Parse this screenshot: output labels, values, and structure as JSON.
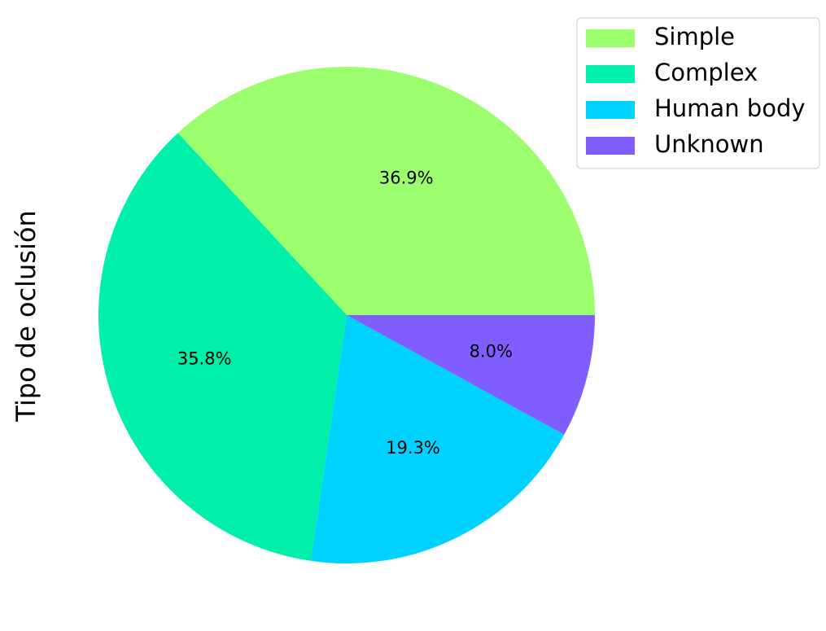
{
  "chart_data": {
    "type": "pie",
    "title": "",
    "ylabel": "Tipo de oclusión",
    "labels": [
      "Simple",
      "Complex",
      "Human body",
      "Unknown"
    ],
    "values": [
      36.9,
      35.8,
      19.3,
      8.0
    ],
    "value_labels": [
      "36.9%",
      "35.8%",
      "19.3%",
      "8.0%"
    ],
    "colors": [
      "#9bff6d",
      "#00efa9",
      "#00d2ff",
      "#7f5dff"
    ],
    "start_angle": 0,
    "direction": "counterclockwise",
    "legend": {
      "location": "top-right",
      "entries": [
        "Simple",
        "Complex",
        "Human body",
        "Unknown"
      ]
    }
  }
}
